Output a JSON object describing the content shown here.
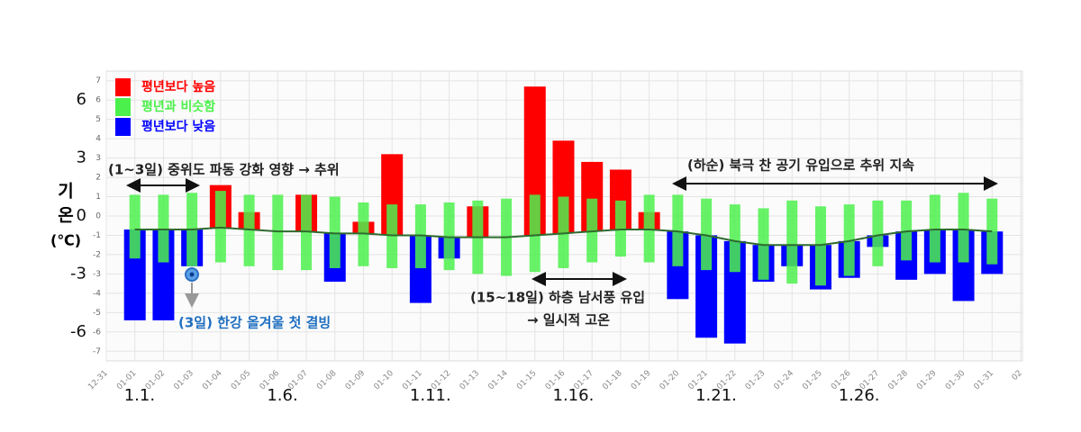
{
  "chart_data": {
    "type": "bar",
    "ylabel": [
      "기",
      "온",
      "(℃)"
    ],
    "categories": [
      "12-31",
      "01-01",
      "01-02",
      "01-03",
      "01-04",
      "01-05",
      "01-06",
      "01-07",
      "01-08",
      "01-09",
      "01-10",
      "01-11",
      "01-12",
      "01-13",
      "01-14",
      "01-15",
      "01-16",
      "01-17",
      "01-18",
      "01-19",
      "01-20",
      "01-21",
      "01-22",
      "01-23",
      "01-24",
      "01-25",
      "01-26",
      "01-27",
      "01-28",
      "01-29",
      "01-30",
      "01-31",
      "02"
    ],
    "series": [
      {
        "name": "평년보다 높음",
        "color": "#ff0000",
        "values": [
          null,
          null,
          null,
          null,
          1.6,
          0.2,
          null,
          1.1,
          null,
          -0.3,
          3.2,
          null,
          null,
          0.5,
          null,
          6.7,
          3.9,
          2.8,
          2.4,
          0.2,
          null,
          null,
          null,
          null,
          null,
          null,
          null,
          null,
          null,
          null,
          null,
          null,
          null
        ]
      },
      {
        "name": "평년과 비슷함",
        "color": "#4cf04c",
        "values": [
          null,
          [
            -2.2,
            1.1
          ],
          [
            -2.4,
            1.1
          ],
          [
            -2.6,
            1.2
          ],
          [
            -2.4,
            1.3
          ],
          [
            -2.6,
            1.1
          ],
          [
            -2.8,
            1.1
          ],
          [
            -2.8,
            1.1
          ],
          [
            -2.7,
            1.0
          ],
          [
            -2.6,
            0.7
          ],
          [
            -2.7,
            0.6
          ],
          [
            -2.7,
            0.6
          ],
          [
            -2.8,
            0.7
          ],
          [
            -3.0,
            0.8
          ],
          [
            -3.1,
            0.9
          ],
          [
            -2.9,
            1.1
          ],
          [
            -2.7,
            1.0
          ],
          [
            -2.4,
            0.9
          ],
          [
            -2.1,
            0.8
          ],
          [
            -2.4,
            1.1
          ],
          [
            -2.6,
            1.1
          ],
          [
            -2.8,
            0.9
          ],
          [
            -2.9,
            0.6
          ],
          [
            -3.3,
            0.4
          ],
          [
            -3.5,
            0.8
          ],
          [
            -3.6,
            0.5
          ],
          [
            -3.1,
            0.6
          ],
          [
            -2.6,
            0.8
          ],
          [
            -2.3,
            0.8
          ],
          [
            -2.4,
            1.1
          ],
          [
            -2.4,
            1.2
          ],
          [
            -2.5,
            0.9
          ],
          null
        ]
      },
      {
        "name": "평년보다 낮음",
        "color": "#0000ff",
        "values": [
          null,
          -5.4,
          -5.4,
          -2.6,
          null,
          null,
          null,
          null,
          -3.4,
          null,
          null,
          -4.5,
          -2.2,
          null,
          null,
          null,
          null,
          null,
          null,
          null,
          -4.3,
          -6.3,
          -6.6,
          -3.4,
          -2.6,
          -3.8,
          -3.2,
          -1.6,
          -3.3,
          -3.0,
          -4.4,
          -3.0,
          null
        ]
      }
    ],
    "normal_line": {
      "color": "#2f6b2f",
      "values": [
        null,
        -0.7,
        -0.7,
        -0.7,
        -0.6,
        -0.7,
        -0.8,
        -0.8,
        -0.9,
        -0.9,
        -1.0,
        -1.0,
        -1.1,
        -1.1,
        -1.1,
        -1.0,
        -0.9,
        -0.8,
        -0.7,
        -0.7,
        -0.8,
        -1.0,
        -1.3,
        -1.5,
        -1.5,
        -1.5,
        -1.3,
        -1.0,
        -0.8,
        -0.7,
        -0.7,
        -0.8,
        null
      ]
    },
    "ylim": [
      -7.5,
      7.5
    ],
    "yticks": [
      -7,
      -6,
      -5,
      -4,
      -3,
      -2,
      -1,
      0,
      1,
      2,
      3,
      4,
      5,
      6,
      7
    ],
    "major_yticks": [
      -6,
      -3,
      0,
      3,
      6
    ],
    "grid": true,
    "legend": "top-left",
    "period_labels": [
      {
        "category": "01-01",
        "label": "1.1."
      },
      {
        "category": "01-06",
        "label": "1.6."
      },
      {
        "category": "01-11",
        "label": "1.11."
      },
      {
        "category": "01-16",
        "label": "1.16."
      },
      {
        "category": "01-21",
        "label": "1.21."
      },
      {
        "category": "01-26",
        "label": "1.26."
      }
    ],
    "annotations": [
      "(1~3일) 중위도 파동 강화 영향 → 추위",
      "(3일) 한강 올겨울 첫 결빙",
      "(15~18일) 하층 남서풍 유입",
      "→ 일시적 고온",
      "(하순) 북극 찬 공기 유입으로 추위 지속"
    ]
  }
}
